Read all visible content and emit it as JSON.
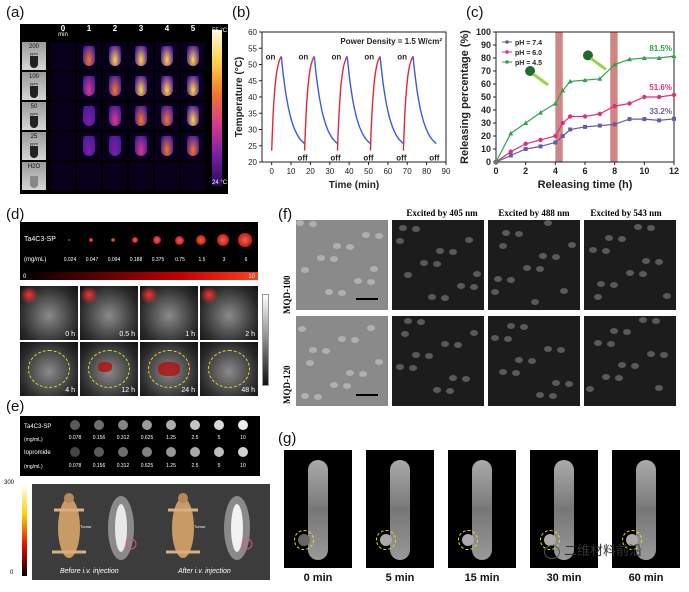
{
  "panels": {
    "a": "(a)",
    "b": "(b)",
    "c": "(c)",
    "d": "(d)",
    "e": "(e)",
    "f": "(f)",
    "g": "(g)"
  },
  "panel_a": {
    "time_cols": [
      "0\nmin",
      "1",
      "2",
      "3",
      "4",
      "5"
    ],
    "time_col_labels": [
      "0",
      "1",
      "2",
      "3",
      "4",
      "5"
    ],
    "min_label": "min",
    "conc_rows": [
      "200",
      "100",
      "50",
      "25",
      "H2O"
    ],
    "conc_unit": "ppm",
    "scale_max": "55 °C",
    "scale_min": "24 °C",
    "colors": {
      "hot": "#ffd34d",
      "mid": "#d93a8a",
      "cool": "#4b1b9a",
      "bg": "#000000"
    }
  },
  "chart_data": [
    {
      "id": "b",
      "type": "line",
      "title": "Power Density = 1.5 W/cm²",
      "xlabel": "Time (min)",
      "ylabel": "Temperature (°C)",
      "xlim": [
        -5,
        90
      ],
      "ylim": [
        20,
        60
      ],
      "xticks": [
        0,
        10,
        20,
        30,
        40,
        50,
        60,
        70,
        80,
        90
      ],
      "yticks": [
        20,
        25,
        30,
        35,
        40,
        45,
        50,
        55,
        60
      ],
      "cycles": [
        {
          "on_start": 0,
          "peak": 5,
          "off_end": 17
        },
        {
          "on_start": 17,
          "peak": 22,
          "off_end": 34
        },
        {
          "on_start": 34,
          "peak": 39,
          "off_end": 51
        },
        {
          "on_start": 51,
          "peak": 56,
          "off_end": 68
        },
        {
          "on_start": 68,
          "peak": 73,
          "off_end": 85
        }
      ],
      "t_low": 23.5,
      "t_high": 52.5,
      "on_label": "on",
      "off_label": "off",
      "colors": {
        "heat": "#e0283a",
        "cool": "#3b5bd9"
      }
    },
    {
      "id": "c",
      "type": "line",
      "xlabel": "Releasing time (h)",
      "ylabel": "Releasing percentage (%)",
      "xlim": [
        0,
        12
      ],
      "ylim": [
        0,
        100
      ],
      "xticks": [
        0,
        2,
        4,
        6,
        8,
        10,
        12
      ],
      "yticks": [
        0,
        10,
        20,
        30,
        40,
        50,
        60,
        70,
        80,
        90,
        100
      ],
      "shaded_bands": [
        [
          4,
          4.5
        ],
        [
          7.7,
          8.2
        ]
      ],
      "series": [
        {
          "name": "pH = 7.4",
          "color": "#6a5aa8",
          "marker": "square",
          "x": [
            0,
            1,
            2,
            3,
            4,
            4.5,
            5,
            6,
            7,
            8,
            9,
            10,
            11,
            12
          ],
          "y": [
            0,
            5,
            10,
            12,
            15,
            20,
            25,
            27,
            28,
            29,
            33,
            33,
            32,
            33.2
          ],
          "end_label": "33.2%"
        },
        {
          "name": "pH = 6.0",
          "color": "#e0307a",
          "marker": "circle",
          "x": [
            0,
            1,
            2,
            3,
            4,
            4.5,
            5,
            6,
            7,
            8,
            9,
            10,
            11,
            12
          ],
          "y": [
            0,
            8,
            14,
            17,
            20,
            30,
            35,
            35,
            37,
            43,
            45,
            50,
            50,
            51.6
          ],
          "end_label": "51.6%"
        },
        {
          "name": "pH = 4.5",
          "color": "#2fa24a",
          "marker": "triangle",
          "x": [
            0,
            1,
            2,
            3,
            4,
            4.5,
            5,
            6,
            7,
            8,
            9,
            10,
            11,
            12
          ],
          "y": [
            0,
            22,
            30,
            38,
            45,
            55,
            62,
            63,
            64,
            75,
            79,
            80,
            80,
            81.5
          ],
          "end_label": "81.5%"
        }
      ]
    }
  ],
  "panel_d": {
    "agent": "Ta4C3-SP",
    "conc_label": "(mg/mL)",
    "concs": [
      "0.024",
      "0.047",
      "0.094",
      "0.188",
      "0.375",
      "0.75",
      "1.5",
      "3",
      "6"
    ],
    "scale_min": "0",
    "scale_max": "10",
    "times_top": [
      "0 h",
      "0.5 h",
      "1 h",
      "2 h"
    ],
    "times_bottom": [
      "4 h",
      "12 h",
      "24 h",
      "48 h"
    ]
  },
  "panel_e": {
    "agent1": "Ta4C3-SP",
    "agent2": "Iopromide",
    "conc_label": "(mg/mL)",
    "concs": [
      "0.078",
      "0.156",
      "0.312",
      "0.625",
      "1.25",
      "2.5",
      "5",
      "10"
    ],
    "scale_max": "300",
    "scale_min": "0",
    "cap_before": "Before i.v. injection",
    "cap_after": "After i.v. injection",
    "tumor": "Tumor"
  },
  "panel_f": {
    "col_headers": [
      "Excited by 405 nm",
      "Excited by 488 nm",
      "Excited by 543 nm"
    ],
    "rows": [
      "MQD-100",
      "MQD-120"
    ]
  },
  "panel_g": {
    "times": [
      "0 min",
      "5 min",
      "15 min",
      "30 min",
      "60 min"
    ],
    "watermark": "二维材料前沿"
  }
}
